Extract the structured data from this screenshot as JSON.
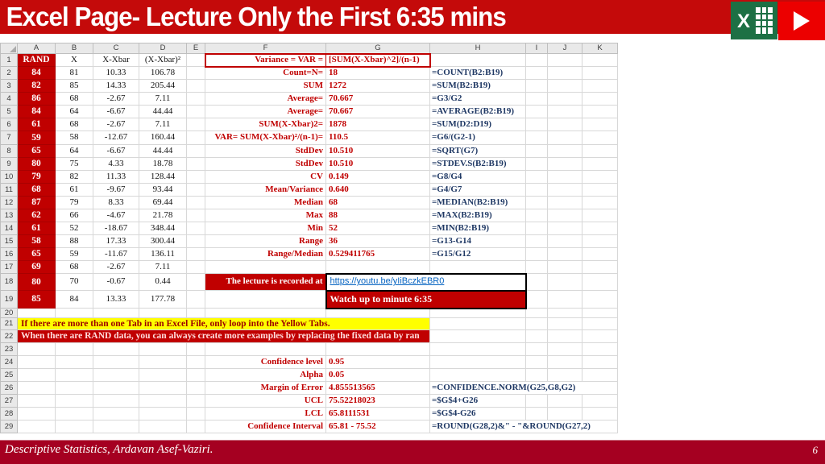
{
  "title": {
    "text": "Excel Page- Lecture Only the First 6:35 mins"
  },
  "icons": {
    "excel": "excel-logo",
    "play": "play-button"
  },
  "colors": {
    "title_bar": "#C40A0A",
    "accent_red": "#C00000",
    "footer_bar": "#A50021",
    "banner_yellow": "#FFFF00",
    "formula_navy": "#1F3864",
    "link_blue": "#0563C1",
    "play_red": "#EC0000",
    "excel_green": "#1D7044"
  },
  "sheet": {
    "col_headers": [
      "A",
      "B",
      "C",
      "D",
      "E",
      "F",
      "G",
      "H",
      "I",
      "J",
      "K"
    ],
    "rows": [
      {
        "n": 1,
        "A": "RAND",
        "B": "X",
        "C": "X-Xbar",
        "D": "(X-Xbar)²",
        "F": "Variance =  VAR =",
        "G": "[SUM(X-Xbar)^2]/(n-1)"
      },
      {
        "n": 2,
        "A": "84",
        "B": "81",
        "C": "10.33",
        "D": "106.78",
        "F": "Count=N=",
        "G": "18",
        "H": "=COUNT(B2:B19)"
      },
      {
        "n": 3,
        "A": "82",
        "B": "85",
        "C": "14.33",
        "D": "205.44",
        "F": "SUM",
        "G": "1272",
        "H": "=SUM(B2:B19)"
      },
      {
        "n": 4,
        "A": "86",
        "B": "68",
        "C": "-2.67",
        "D": "7.11",
        "F": "Average=",
        "G": "70.667",
        "H": "=G3/G2"
      },
      {
        "n": 5,
        "A": "84",
        "B": "64",
        "C": "-6.67",
        "D": "44.44",
        "F": "Average=",
        "G": "70.667",
        "H": "=AVERAGE(B2:B19)"
      },
      {
        "n": 6,
        "A": "61",
        "B": "68",
        "C": "-2.67",
        "D": "7.11",
        "F": "SUM(X-Xbar)2=",
        "G": "1878",
        "H": "=SUM(D2:D19)"
      },
      {
        "n": 7,
        "A": "59",
        "B": "58",
        "C": "-12.67",
        "D": "160.44",
        "F": "VAR= SUM(X-Xbar)²/(n-1)=",
        "G": "110.5",
        "H": "=G6/(G2-1)"
      },
      {
        "n": 8,
        "A": "65",
        "B": "64",
        "C": "-6.67",
        "D": "44.44",
        "F": "StdDev",
        "G": "10.510",
        "H": "=SQRT(G7)"
      },
      {
        "n": 9,
        "A": "80",
        "B": "75",
        "C": "4.33",
        "D": "18.78",
        "F": "StdDev",
        "G": "10.510",
        "H": "=STDEV.S(B2:B19)"
      },
      {
        "n": 10,
        "A": "79",
        "B": "82",
        "C": "11.33",
        "D": "128.44",
        "F": "CV",
        "G": "0.149",
        "H": "=G8/G4"
      },
      {
        "n": 11,
        "A": "68",
        "B": "61",
        "C": "-9.67",
        "D": "93.44",
        "F": "Mean/Variance",
        "G": "0.640",
        "H": "=G4/G7"
      },
      {
        "n": 12,
        "A": "87",
        "B": "79",
        "C": "8.33",
        "D": "69.44",
        "F": "Median",
        "G": "68",
        "H": "=MEDIAN(B2:B19)"
      },
      {
        "n": 13,
        "A": "62",
        "B": "66",
        "C": "-4.67",
        "D": "21.78",
        "F": "Max",
        "G": "88",
        "H": "=MAX(B2:B19)"
      },
      {
        "n": 14,
        "A": "61",
        "B": "52",
        "C": "-18.67",
        "D": "348.44",
        "F": "Min",
        "G": "52",
        "H": "=MIN(B2:B19)"
      },
      {
        "n": 15,
        "A": "58",
        "B": "88",
        "C": "17.33",
        "D": "300.44",
        "F": "Range",
        "G": "36",
        "H": "=G13-G14"
      },
      {
        "n": 16,
        "A": "65",
        "B": "59",
        "C": "-11.67",
        "D": "136.11",
        "F": "Range/Median",
        "G": "0.529411765",
        "H": "=G15/G12"
      },
      {
        "n": 17,
        "A": "69",
        "B": "68",
        "C": "-2.67",
        "D": "7.11"
      },
      {
        "n": 18,
        "A": "80",
        "B": "70",
        "C": "-0.67",
        "D": "0.44",
        "F": "The lecture is recorded at",
        "G": "https://youtu.be/yIiBczkEBR0"
      },
      {
        "n": 19,
        "A": "85",
        "B": "84",
        "C": "13.33",
        "D": "177.78",
        "G": "Watch up to minute 6:35"
      },
      {
        "n": 20
      },
      {
        "n": 21,
        "A": "If there are more than one Tab in an  Excel File, only loop into the Yellow Tabs."
      },
      {
        "n": 22,
        "A": "When there are RAND data, you can always create more examples by replacing the fixed data by ran"
      },
      {
        "n": 23
      },
      {
        "n": 24,
        "F": "Confidence level",
        "G": "0.95"
      },
      {
        "n": 25,
        "F": "Alpha",
        "G": "0.05"
      },
      {
        "n": 26,
        "F": "Margin of Error",
        "G": "4.855513565",
        "H": "=CONFIDENCE.NORM(G25,G8,G2)"
      },
      {
        "n": 27,
        "F": "UCL",
        "G": "75.52218023",
        "H": "=$G$4+G26"
      },
      {
        "n": 28,
        "F": "LCL",
        "G": "65.8111531",
        "H": "=$G$4-G26"
      },
      {
        "n": 29,
        "F": "Confidence Interval",
        "G": "65.81 - 75.52",
        "H": "=ROUND(G28,2)&\" - \"&ROUND(G27,2)"
      }
    ]
  },
  "footer": {
    "left": "Descriptive Statistics, Ardavan Asef-Vaziri.",
    "page": "6"
  }
}
